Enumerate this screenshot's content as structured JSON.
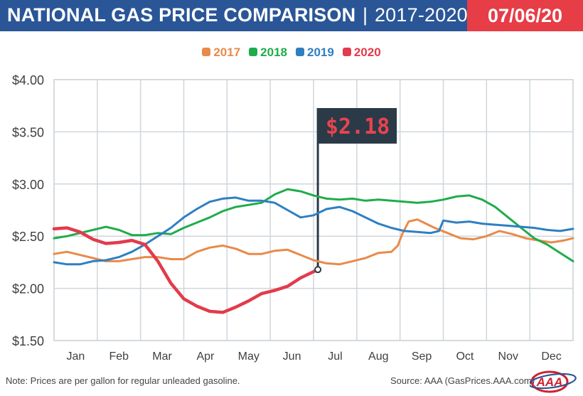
{
  "header": {
    "title": "NATIONAL GAS PRICE COMPARISON",
    "separator": "|",
    "range": "2017-2020",
    "date": "07/06/20"
  },
  "colors": {
    "header_bg": "#2a5697",
    "date_bg": "#e63d47",
    "series_2017": "#e98a4a",
    "series_2018": "#1fac4b",
    "series_2019": "#2e7fc2",
    "series_2020": "#e23b4b",
    "flag_bg": "#2b3a47",
    "flag_text": "#e9434f"
  },
  "callout": {
    "label": "$2.18",
    "value": 2.18,
    "x": 6.1
  },
  "footer": {
    "note": "Note: Prices are per gallon for regular unleaded gasoline.",
    "source": "Source: AAA (GasPrices.AAA.com)",
    "logo_text": "AAA"
  },
  "chart_data": {
    "type": "line",
    "categories": [
      "Jan",
      "Feb",
      "Mar",
      "Apr",
      "May",
      "Jun",
      "Jul",
      "Aug",
      "Sep",
      "Oct",
      "Nov",
      "Dec"
    ],
    "ylim": [
      1.5,
      4.0
    ],
    "yticks": [
      "$1.50",
      "$2.00",
      "$2.50",
      "$3.00",
      "$3.50",
      "$4.00"
    ],
    "ytick_values": [
      1.5,
      2.0,
      2.5,
      3.0,
      3.5,
      4.0
    ],
    "xlim": [
      0,
      12
    ],
    "grid": true,
    "legend_position": "top-center",
    "series": [
      {
        "name": "2017",
        "color": "#e98a4a",
        "x": [
          0.0,
          0.3,
          0.6,
          0.9,
          1.2,
          1.5,
          1.8,
          2.1,
          2.4,
          2.7,
          3.0,
          3.3,
          3.6,
          3.9,
          4.2,
          4.5,
          4.8,
          5.1,
          5.4,
          5.7,
          6.0,
          6.3,
          6.6,
          6.9,
          7.2,
          7.5,
          7.8,
          7.95,
          8.05,
          8.2,
          8.4,
          8.6,
          8.8,
          9.1,
          9.4,
          9.7,
          10.0,
          10.3,
          10.6,
          10.9,
          11.2,
          11.5,
          11.8,
          12.0
        ],
        "y": [
          2.33,
          2.35,
          2.32,
          2.29,
          2.26,
          2.26,
          2.28,
          2.3,
          2.3,
          2.28,
          2.28,
          2.35,
          2.39,
          2.41,
          2.38,
          2.33,
          2.33,
          2.36,
          2.37,
          2.32,
          2.27,
          2.24,
          2.23,
          2.26,
          2.29,
          2.34,
          2.35,
          2.41,
          2.52,
          2.64,
          2.66,
          2.62,
          2.58,
          2.53,
          2.48,
          2.47,
          2.5,
          2.55,
          2.52,
          2.48,
          2.46,
          2.44,
          2.46,
          2.48
        ]
      },
      {
        "name": "2018",
        "color": "#1fac4b",
        "x": [
          0.0,
          0.3,
          0.6,
          0.9,
          1.2,
          1.5,
          1.8,
          2.1,
          2.4,
          2.7,
          3.0,
          3.3,
          3.6,
          3.9,
          4.2,
          4.5,
          4.8,
          5.1,
          5.4,
          5.7,
          6.0,
          6.3,
          6.6,
          6.9,
          7.2,
          7.5,
          7.8,
          8.1,
          8.4,
          8.7,
          9.0,
          9.3,
          9.6,
          9.9,
          10.2,
          10.5,
          10.8,
          11.1,
          11.4,
          11.7,
          12.0
        ],
        "y": [
          2.48,
          2.5,
          2.53,
          2.56,
          2.59,
          2.56,
          2.51,
          2.51,
          2.53,
          2.52,
          2.58,
          2.63,
          2.68,
          2.74,
          2.78,
          2.8,
          2.82,
          2.9,
          2.95,
          2.93,
          2.89,
          2.86,
          2.85,
          2.86,
          2.84,
          2.85,
          2.84,
          2.83,
          2.82,
          2.83,
          2.85,
          2.88,
          2.89,
          2.85,
          2.78,
          2.68,
          2.58,
          2.48,
          2.42,
          2.34,
          2.26
        ]
      },
      {
        "name": "2019",
        "color": "#2e7fc2",
        "x": [
          0.0,
          0.3,
          0.6,
          0.9,
          1.2,
          1.5,
          1.8,
          2.1,
          2.4,
          2.7,
          3.0,
          3.3,
          3.6,
          3.9,
          4.2,
          4.5,
          4.8,
          5.1,
          5.4,
          5.7,
          6.0,
          6.3,
          6.6,
          6.9,
          7.2,
          7.5,
          7.8,
          8.1,
          8.4,
          8.7,
          8.9,
          9.0,
          9.3,
          9.6,
          9.9,
          10.2,
          10.5,
          10.8,
          11.1,
          11.4,
          11.7,
          12.0
        ],
        "y": [
          2.25,
          2.23,
          2.23,
          2.26,
          2.27,
          2.3,
          2.35,
          2.42,
          2.5,
          2.58,
          2.68,
          2.76,
          2.83,
          2.86,
          2.87,
          2.84,
          2.84,
          2.82,
          2.75,
          2.68,
          2.7,
          2.76,
          2.78,
          2.74,
          2.68,
          2.62,
          2.58,
          2.55,
          2.54,
          2.53,
          2.55,
          2.65,
          2.63,
          2.64,
          2.62,
          2.61,
          2.6,
          2.59,
          2.58,
          2.56,
          2.55,
          2.57
        ]
      },
      {
        "name": "2020",
        "color": "#e23b4b",
        "x": [
          0.0,
          0.3,
          0.6,
          0.9,
          1.2,
          1.5,
          1.8,
          2.1,
          2.4,
          2.7,
          3.0,
          3.3,
          3.6,
          3.9,
          4.2,
          4.5,
          4.8,
          5.1,
          5.4,
          5.7,
          6.0,
          6.1
        ],
        "y": [
          2.57,
          2.58,
          2.54,
          2.47,
          2.43,
          2.44,
          2.46,
          2.42,
          2.26,
          2.05,
          1.9,
          1.83,
          1.78,
          1.77,
          1.82,
          1.88,
          1.95,
          1.98,
          2.02,
          2.1,
          2.16,
          2.18
        ]
      }
    ]
  }
}
